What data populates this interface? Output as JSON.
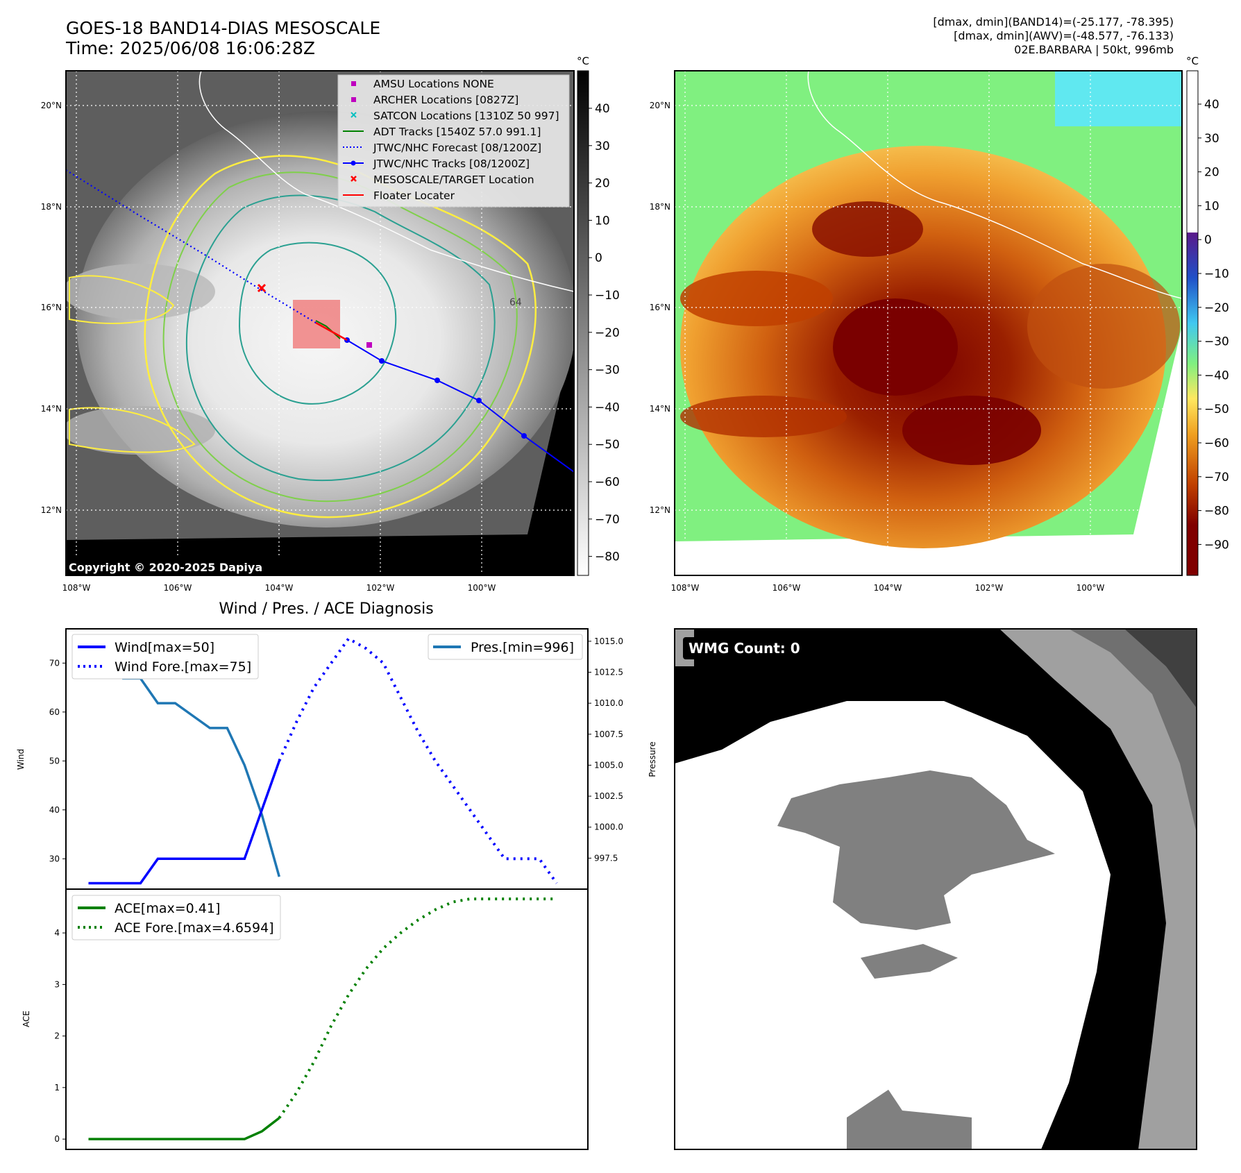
{
  "header": {
    "title_line1": "GOES-18 BAND14-DIAS MESOSCALE",
    "title_line2": "Time: 2025/06/08 16:06:28Z",
    "info_line1": "[dmax, dmin](BAND14)=(-25.177, -78.395)",
    "info_line2": "[dmax, dmin](AWV)=(-48.577, -76.133)",
    "info_line3": "02E.BARBARA | 50kt, 996mb"
  },
  "map_axes": {
    "lon_ticks": [
      "108°W",
      "106°W",
      "104°W",
      "102°W",
      "100°W"
    ],
    "lat_ticks": [
      "20°N",
      "18°N",
      "16°N",
      "14°N",
      "12°N"
    ]
  },
  "ir_panel": {
    "copyright": "Copyright © 2020-2025 Dapiya",
    "colorbar_unit": "°C",
    "colorbar_ticks": [
      "40",
      "30",
      "20",
      "10",
      "0",
      "−10",
      "−20",
      "−30",
      "−40",
      "−50",
      "−60",
      "−70",
      "−80"
    ],
    "contour_label": "64",
    "legend": [
      {
        "label": "AMSU Locations NONE",
        "color": "#bf00bf",
        "marker": "square"
      },
      {
        "label": "ARCHER Locations [0827Z]",
        "color": "#bf00bf",
        "marker": "square"
      },
      {
        "label": "SATCON Locations [1310Z 50 997]",
        "color": "#00bfbf",
        "marker": "x"
      },
      {
        "label": "ADT Tracks [1540Z 57.0 991.1]",
        "color": "#008000",
        "marker": "line"
      },
      {
        "label": "JTWC/NHC Forecast [08/1200Z]",
        "color": "#0000ff",
        "marker": "dotted"
      },
      {
        "label": "JTWC/NHC Tracks [08/1200Z]",
        "color": "#0000ff",
        "marker": "line-dot"
      },
      {
        "label": "MESOSCALE/TARGET Location",
        "color": "#ff0000",
        "marker": "x"
      },
      {
        "label": "Floater Locater",
        "color": "#ff0000",
        "marker": "line"
      }
    ]
  },
  "awv_panel": {
    "colorbar_unit": "°C",
    "colorbar_ticks": [
      "40",
      "30",
      "20",
      "10",
      "0",
      "−10",
      "−20",
      "−30",
      "−40",
      "−50",
      "−60",
      "−70",
      "−80",
      "−90"
    ]
  },
  "wind_panel": {
    "title": "Wind / Pres. / ACE Diagnosis",
    "legend_wind": "Wind[max=50]",
    "legend_wind_fore": "Wind Fore.[max=75]",
    "legend_pres": "Pres.[min=996]",
    "ylabel_left": "Wind",
    "ylabel_right": "Pressure",
    "colors": {
      "wind": "#0000ff",
      "pres": "#1f77b4"
    }
  },
  "ace_panel": {
    "legend_ace": "ACE[max=0.41]",
    "legend_ace_fore": "ACE Fore.[max=4.6594]",
    "ylabel": "ACE",
    "color": "#008000"
  },
  "wmg_panel": {
    "badge": "WMG Count: 0"
  },
  "chart_data": [
    {
      "type": "line",
      "name": "wind-pressure",
      "x": [
        0,
        1,
        2,
        3,
        4,
        5,
        6,
        7,
        8,
        9,
        10,
        11,
        12,
        13,
        14,
        15,
        16,
        17,
        18,
        19,
        20,
        21,
        22,
        23,
        24,
        25,
        26,
        27
      ],
      "wind": {
        "x": [
          0,
          1,
          2,
          3,
          4,
          5,
          6,
          7,
          8,
          9,
          10,
          11
        ],
        "values": [
          25,
          25,
          25,
          25,
          30,
          30,
          30,
          30,
          30,
          30,
          40,
          50
        ]
      },
      "wind_fore": {
        "x": [
          11,
          12,
          13,
          14,
          15,
          16,
          17,
          18,
          19,
          20,
          21,
          22,
          23,
          24,
          25,
          26,
          27
        ],
        "values": [
          50,
          58,
          65,
          70,
          75,
          73,
          70,
          63,
          56,
          50,
          45,
          40,
          35,
          30,
          30,
          30,
          25
        ]
      },
      "pressure": {
        "x": [
          0,
          1,
          2,
          3,
          4,
          5,
          6,
          7,
          8,
          9,
          10,
          11
        ],
        "values": [
          1015,
          1015,
          1012,
          1012,
          1010,
          1010,
          1009,
          1008,
          1008,
          1005,
          1001,
          996
        ]
      },
      "ylim_wind": [
        25,
        77
      ],
      "ylim_pres": [
        995,
        1016
      ],
      "yticks_wind": [
        30,
        40,
        50,
        60,
        70
      ],
      "yticks_pres": [
        "997.5",
        "1000.0",
        "1002.5",
        "1005.0",
        "1007.5",
        "1010.0",
        "1012.5",
        "1015.0"
      ]
    },
    {
      "type": "line",
      "name": "ace",
      "ace": {
        "x": [
          0,
          1,
          2,
          3,
          4,
          5,
          6,
          7,
          8,
          9,
          10,
          11
        ],
        "values": [
          0,
          0,
          0,
          0,
          0,
          0,
          0,
          0,
          0,
          0,
          0.15,
          0.41
        ]
      },
      "ace_fore": {
        "x": [
          11,
          12,
          13,
          14,
          15,
          16,
          17,
          18,
          19,
          20,
          21,
          22,
          23,
          24,
          25,
          26,
          27
        ],
        "values": [
          0.41,
          0.9,
          1.5,
          2.2,
          2.8,
          3.3,
          3.7,
          4.0,
          4.25,
          4.45,
          4.6,
          4.66,
          4.66,
          4.66,
          4.66,
          4.66,
          4.66
        ]
      },
      "ylim": [
        -0.2,
        4.85
      ],
      "yticks": [
        0,
        1,
        2,
        3,
        4
      ]
    }
  ]
}
